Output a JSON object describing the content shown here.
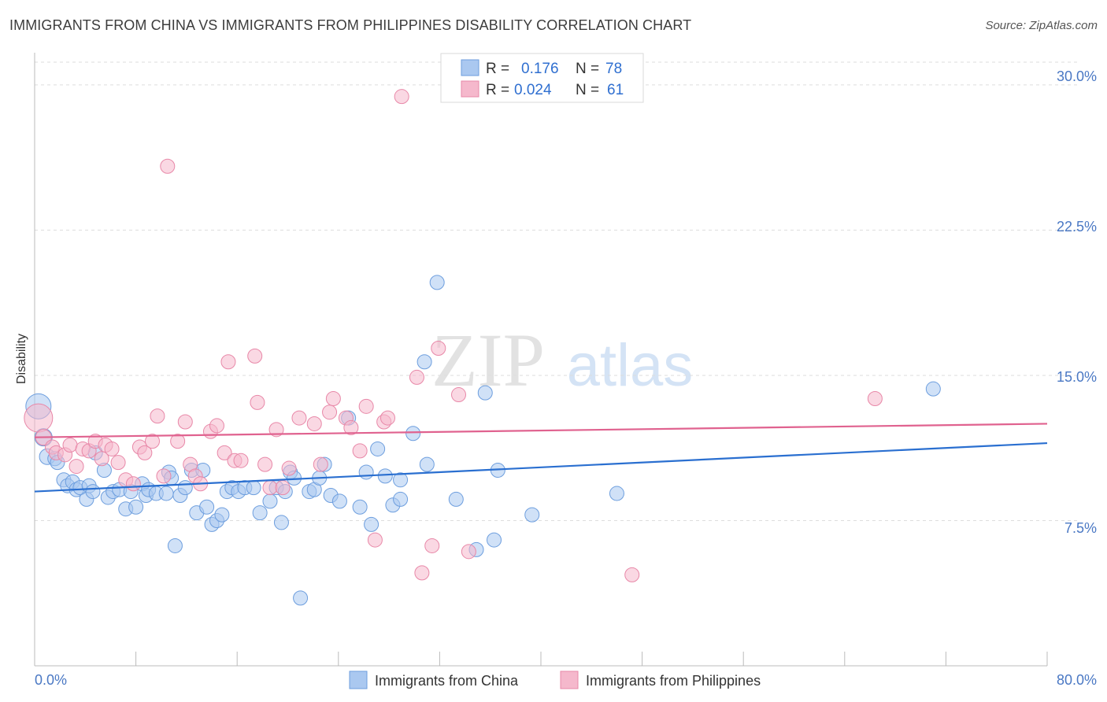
{
  "title": "IMMIGRANTS FROM CHINA VS IMMIGRANTS FROM PHILIPPINES DISABILITY CORRELATION CHART",
  "source": "Source: ZipAtlas.com",
  "watermark": {
    "zip": "ZIP",
    "atlas": "atlas"
  },
  "colors": {
    "china_fill": "#aac8f0",
    "china_stroke": "#6d9ede",
    "china_line": "#2a6fd0",
    "phil_fill": "#f5b8cc",
    "phil_stroke": "#e888a8",
    "phil_line": "#e0628f",
    "grid": "#dddddd",
    "axis_text": "#4a78c4"
  },
  "legend": {
    "china": {
      "r_label": "R =",
      "r_value": "0.176",
      "n_label": "N =",
      "n_value": "78"
    },
    "phil": {
      "r_label": "R =",
      "r_value": "0.024",
      "n_label": "N =",
      "n_value": "61"
    }
  },
  "bottom_legend": [
    "Immigrants from China",
    "Immigrants from Philippines"
  ],
  "chart_data": {
    "type": "scatter",
    "ylabel": "Disability",
    "xlim": [
      0,
      80
    ],
    "ylim": [
      0,
      31.5
    ],
    "x_tick_labels": [
      "0.0%",
      "80.0%"
    ],
    "y_ticks": [
      7.5,
      15.0,
      22.5,
      30.0
    ],
    "y_tick_labels": [
      "7.5%",
      "15.0%",
      "22.5%",
      "30.0%"
    ],
    "series": [
      {
        "name": "Immigrants from China",
        "trend": {
          "x": [
            0,
            80
          ],
          "y": [
            9.0,
            11.5
          ]
        },
        "points": [
          [
            0.3,
            13.4,
            16
          ],
          [
            0.7,
            11.8,
            11
          ],
          [
            1.0,
            10.8,
            10
          ],
          [
            1.6,
            10.7,
            9
          ],
          [
            1.8,
            10.5,
            9
          ],
          [
            2.3,
            9.6,
            9
          ],
          [
            2.6,
            9.3,
            9
          ],
          [
            3.0,
            9.5,
            9
          ],
          [
            3.3,
            9.1,
            9
          ],
          [
            3.6,
            9.2,
            9
          ],
          [
            4.1,
            8.6,
            9
          ],
          [
            4.3,
            9.3,
            9
          ],
          [
            4.6,
            9.0,
            9
          ],
          [
            4.8,
            11.0,
            9
          ],
          [
            5.5,
            10.1,
            9
          ],
          [
            5.8,
            8.7,
            9
          ],
          [
            6.2,
            9.0,
            9
          ],
          [
            6.7,
            9.1,
            9
          ],
          [
            7.2,
            8.1,
            9
          ],
          [
            7.6,
            9.0,
            9
          ],
          [
            8.0,
            8.2,
            9
          ],
          [
            8.5,
            9.4,
            9
          ],
          [
            8.8,
            8.8,
            9
          ],
          [
            9.0,
            9.1,
            9
          ],
          [
            9.6,
            8.9,
            9
          ],
          [
            10.4,
            8.9,
            9
          ],
          [
            10.6,
            10.0,
            9
          ],
          [
            10.8,
            9.7,
            9
          ],
          [
            11.1,
            6.2,
            9
          ],
          [
            11.5,
            8.8,
            9
          ],
          [
            11.9,
            9.2,
            9
          ],
          [
            12.4,
            10.1,
            9
          ],
          [
            12.8,
            7.9,
            9
          ],
          [
            13.3,
            10.1,
            9
          ],
          [
            13.6,
            8.2,
            9
          ],
          [
            14.0,
            7.3,
            9
          ],
          [
            14.4,
            7.5,
            9
          ],
          [
            14.8,
            7.8,
            9
          ],
          [
            15.2,
            9.0,
            9
          ],
          [
            15.6,
            9.2,
            9
          ],
          [
            16.1,
            9.0,
            9
          ],
          [
            16.6,
            9.2,
            9
          ],
          [
            17.3,
            9.2,
            9
          ],
          [
            17.8,
            7.9,
            9
          ],
          [
            18.6,
            8.5,
            9
          ],
          [
            19.1,
            9.2,
            9
          ],
          [
            19.5,
            7.4,
            9
          ],
          [
            19.8,
            9.0,
            9
          ],
          [
            20.2,
            10.0,
            9
          ],
          [
            20.5,
            9.7,
            9
          ],
          [
            21.0,
            3.5,
            9
          ],
          [
            21.7,
            9.0,
            9
          ],
          [
            22.1,
            9.1,
            9
          ],
          [
            22.5,
            9.7,
            9
          ],
          [
            22.9,
            10.4,
            9
          ],
          [
            23.4,
            8.8,
            9
          ],
          [
            24.1,
            8.5,
            9
          ],
          [
            24.8,
            12.8,
            9
          ],
          [
            25.7,
            8.2,
            9
          ],
          [
            26.2,
            10.0,
            9
          ],
          [
            26.6,
            7.3,
            9
          ],
          [
            27.1,
            11.2,
            9
          ],
          [
            27.7,
            9.8,
            9
          ],
          [
            28.3,
            8.3,
            9
          ],
          [
            28.9,
            9.6,
            9
          ],
          [
            28.9,
            8.6,
            9
          ],
          [
            29.9,
            12.0,
            9
          ],
          [
            30.8,
            15.7,
            9
          ],
          [
            31.0,
            10.4,
            9
          ],
          [
            31.8,
            19.8,
            9
          ],
          [
            33.3,
            8.6,
            9
          ],
          [
            34.9,
            6.0,
            9
          ],
          [
            35.6,
            14.1,
            9
          ],
          [
            36.3,
            6.5,
            9
          ],
          [
            36.6,
            10.1,
            9
          ],
          [
            39.3,
            7.8,
            9
          ],
          [
            46.0,
            8.9,
            9
          ],
          [
            71.0,
            14.3,
            9
          ]
        ]
      },
      {
        "name": "Immigrants from Philippines",
        "trend": {
          "x": [
            0,
            80
          ],
          "y": [
            11.8,
            12.5
          ]
        },
        "points": [
          [
            0.3,
            12.8,
            18
          ],
          [
            0.7,
            11.8,
            10
          ],
          [
            1.4,
            11.3,
            9
          ],
          [
            1.7,
            11.0,
            9
          ],
          [
            2.4,
            10.9,
            9
          ],
          [
            2.8,
            11.4,
            9
          ],
          [
            3.3,
            10.3,
            9
          ],
          [
            3.8,
            11.2,
            9
          ],
          [
            4.3,
            11.1,
            9
          ],
          [
            4.8,
            11.6,
            9
          ],
          [
            5.3,
            10.7,
            9
          ],
          [
            5.6,
            11.4,
            9
          ],
          [
            6.1,
            11.2,
            9
          ],
          [
            6.6,
            10.5,
            9
          ],
          [
            7.2,
            9.6,
            9
          ],
          [
            7.8,
            9.4,
            9
          ],
          [
            8.3,
            11.3,
            9
          ],
          [
            8.7,
            11.0,
            9
          ],
          [
            9.3,
            11.6,
            9
          ],
          [
            9.7,
            12.9,
            9
          ],
          [
            10.2,
            9.8,
            9
          ],
          [
            10.5,
            25.8,
            9
          ],
          [
            11.3,
            11.6,
            9
          ],
          [
            11.9,
            12.6,
            9
          ],
          [
            12.3,
            10.4,
            9
          ],
          [
            12.7,
            9.8,
            9
          ],
          [
            13.1,
            9.4,
            9
          ],
          [
            13.9,
            12.1,
            9
          ],
          [
            14.4,
            12.4,
            9
          ],
          [
            15.0,
            11.0,
            9
          ],
          [
            15.3,
            15.7,
            9
          ],
          [
            15.8,
            10.6,
            9
          ],
          [
            16.3,
            10.6,
            9
          ],
          [
            17.4,
            16.0,
            9
          ],
          [
            17.6,
            13.6,
            9
          ],
          [
            18.2,
            10.4,
            9
          ],
          [
            18.6,
            9.2,
            9
          ],
          [
            19.1,
            12.2,
            9
          ],
          [
            19.6,
            9.2,
            9
          ],
          [
            20.1,
            10.2,
            9
          ],
          [
            20.9,
            12.8,
            9
          ],
          [
            22.1,
            12.5,
            9
          ],
          [
            22.6,
            10.4,
            9
          ],
          [
            23.3,
            13.1,
            9
          ],
          [
            23.6,
            13.8,
            9
          ],
          [
            24.6,
            12.8,
            9
          ],
          [
            25.0,
            12.3,
            9
          ],
          [
            25.7,
            11.1,
            9
          ],
          [
            26.2,
            13.4,
            9
          ],
          [
            26.9,
            6.5,
            9
          ],
          [
            27.6,
            12.6,
            9
          ],
          [
            27.9,
            12.8,
            9
          ],
          [
            29.0,
            29.4,
            9
          ],
          [
            30.2,
            14.9,
            9
          ],
          [
            30.6,
            4.8,
            9
          ],
          [
            31.4,
            6.2,
            9
          ],
          [
            31.9,
            16.4,
            9
          ],
          [
            33.5,
            14.0,
            9
          ],
          [
            34.3,
            5.9,
            9
          ],
          [
            47.2,
            4.7,
            9
          ],
          [
            66.4,
            13.8,
            9
          ]
        ]
      }
    ]
  }
}
